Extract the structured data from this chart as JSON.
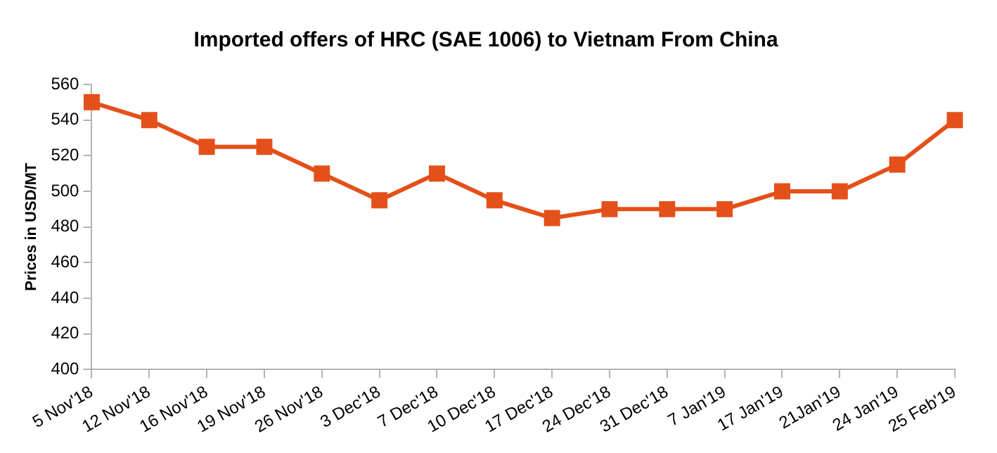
{
  "chart_data": {
    "type": "line",
    "title": "Imported offers of HRC (SAE 1006) to Vietnam From China",
    "ylabel": "Prices in USD/MT",
    "categories": [
      "5 Nov'18",
      "12 Nov'18",
      "16 Nov'18",
      "19 Nov'18",
      "26 Nov'18",
      "3 Dec'18",
      "7 Dec'18",
      "10 Dec'18",
      "17 Dec'18",
      "24 Dec'18",
      "31 Dec'18",
      "7 Jan'19",
      "17 Jan'19",
      "21Jan'19",
      "24 Jan'19",
      "25 Feb'19"
    ],
    "series": [
      {
        "color": "#e4501a",
        "values": [
          550,
          540,
          525,
          525,
          510,
          495,
          510,
          495,
          485,
          490,
          490,
          490,
          500,
          500,
          515,
          540
        ]
      }
    ],
    "ylim": [
      400,
      560
    ],
    "yticks": [
      400,
      420,
      440,
      460,
      480,
      500,
      520,
      540,
      560
    ],
    "grid": false,
    "legend": false,
    "marker": "square",
    "line_style": "solid"
  }
}
